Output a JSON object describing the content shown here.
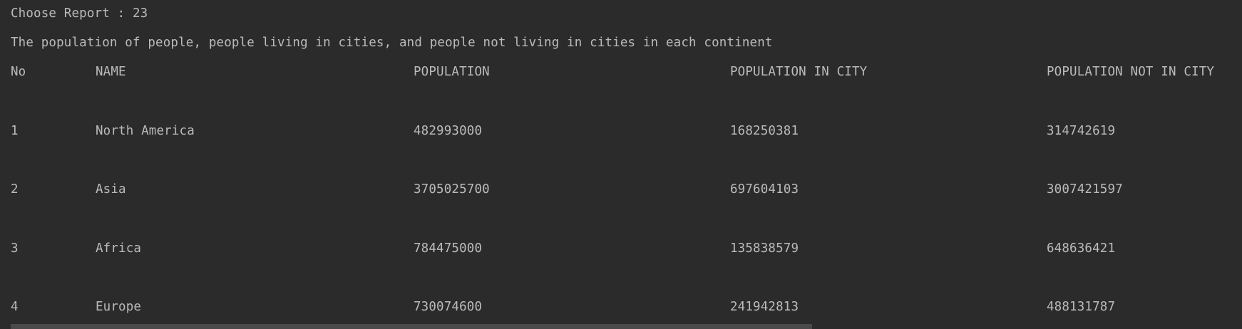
{
  "console": {
    "prompt_label": "Choose Report : 23",
    "report_title": "The population of people, people living in cities, and people not living in cities in each continent",
    "columns": [
      "No",
      "NAME",
      "POPULATION",
      "POPULATION IN CITY",
      "POPULATION NOT IN CITY"
    ],
    "rows": [
      [
        "1",
        "North America",
        "482993000",
        "168250381",
        "314742619"
      ],
      [
        "2",
        "Asia",
        "3705025700",
        "697604103",
        "3007421597"
      ],
      [
        "3",
        "Africa",
        "784475000",
        "135838579",
        "648636421"
      ],
      [
        "4",
        "Europe",
        "730074600",
        "241942813",
        "488131787"
      ]
    ]
  },
  "colors": {
    "background": "#2b2b2b",
    "text": "#bbbbbb",
    "scrollbar_thumb": "#4a4a4a"
  }
}
